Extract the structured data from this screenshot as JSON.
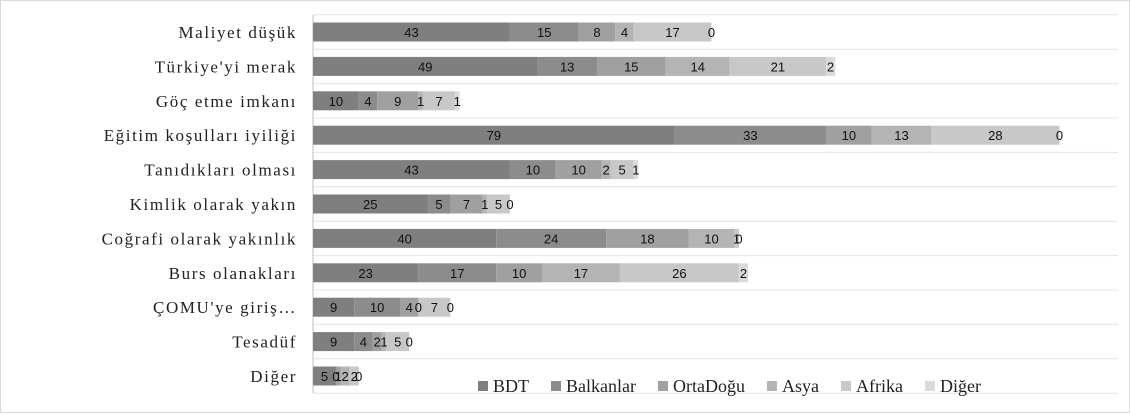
{
  "chart_data": {
    "type": "bar",
    "orientation": "horizontal",
    "stacked": true,
    "title": "",
    "xlabel": "",
    "ylabel": "",
    "xlim": [
      0,
      180
    ],
    "grid": true,
    "legend_position": "bottom-right",
    "categories": [
      "Maliyet düşük",
      "Türkiye'yi merak",
      "Göç etme imkanı",
      "Eğitim koşulları iyiliği",
      "Tanıdıkları olması",
      "Kimlik olarak yakın",
      "Coğrafi olarak yakınlık",
      "Burs olanakları",
      "ÇOMU'ye giriş…",
      "Tesadüf",
      "Diğer"
    ],
    "series": [
      {
        "name": "BDT",
        "color": "#7f7f7f",
        "values": [
          43,
          49,
          10,
          79,
          43,
          25,
          40,
          23,
          9,
          9,
          5
        ]
      },
      {
        "name": "Balkanlar",
        "color": "#8c8c8c",
        "values": [
          15,
          13,
          4,
          33,
          10,
          5,
          24,
          17,
          10,
          4,
          0
        ]
      },
      {
        "name": "OrtaDoğu",
        "color": "#a0a0a0",
        "values": [
          8,
          15,
          9,
          10,
          10,
          7,
          18,
          10,
          4,
          2,
          1
        ]
      },
      {
        "name": "Asya",
        "color": "#b4b4b4",
        "values": [
          4,
          14,
          1,
          13,
          2,
          1,
          10,
          17,
          0,
          1,
          2
        ]
      },
      {
        "name": "Afrika",
        "color": "#c8c8c8",
        "values": [
          17,
          21,
          7,
          28,
          5,
          5,
          1,
          26,
          7,
          5,
          2
        ]
      },
      {
        "name": "Diğer",
        "color": "#dadada",
        "values": [
          0,
          2,
          1,
          0,
          1,
          0,
          0,
          2,
          0,
          0,
          0
        ]
      }
    ]
  }
}
